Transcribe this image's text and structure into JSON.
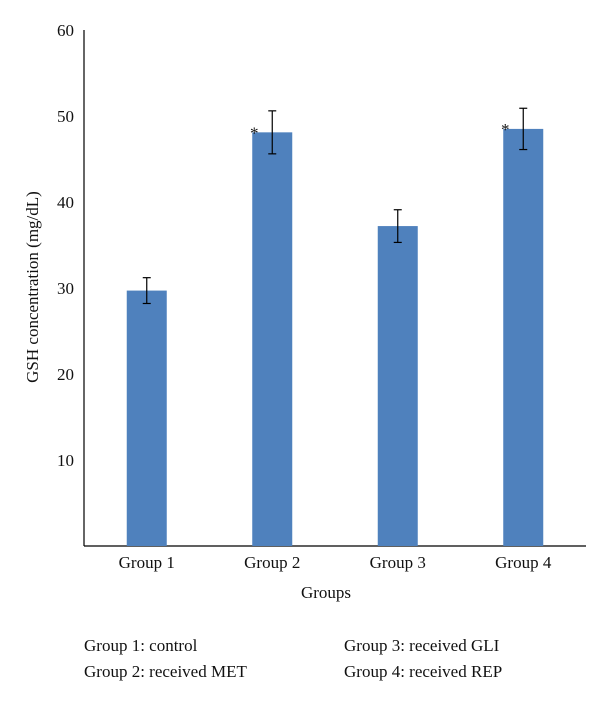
{
  "chart_data": {
    "type": "bar",
    "categories": [
      "Group 1",
      "Group 2",
      "Group 3",
      "Group 4"
    ],
    "values": [
      29.7,
      48.1,
      37.2,
      48.5
    ],
    "errors": [
      1.5,
      2.5,
      1.9,
      2.4
    ],
    "significance": [
      "",
      "*",
      "",
      "*"
    ],
    "title": "",
    "xlabel": "Groups",
    "ylabel": "GSH concentration (mg/dL)",
    "ylim": [
      0,
      60
    ],
    "yticks": [
      10,
      20,
      30,
      40,
      50,
      60
    ],
    "grid": false,
    "bar_color": "#4f81bd"
  },
  "legend": [
    "Group 1: control",
    "Group 2: received MET",
    "Group 3: received GLI",
    "Group 4: received REP"
  ]
}
